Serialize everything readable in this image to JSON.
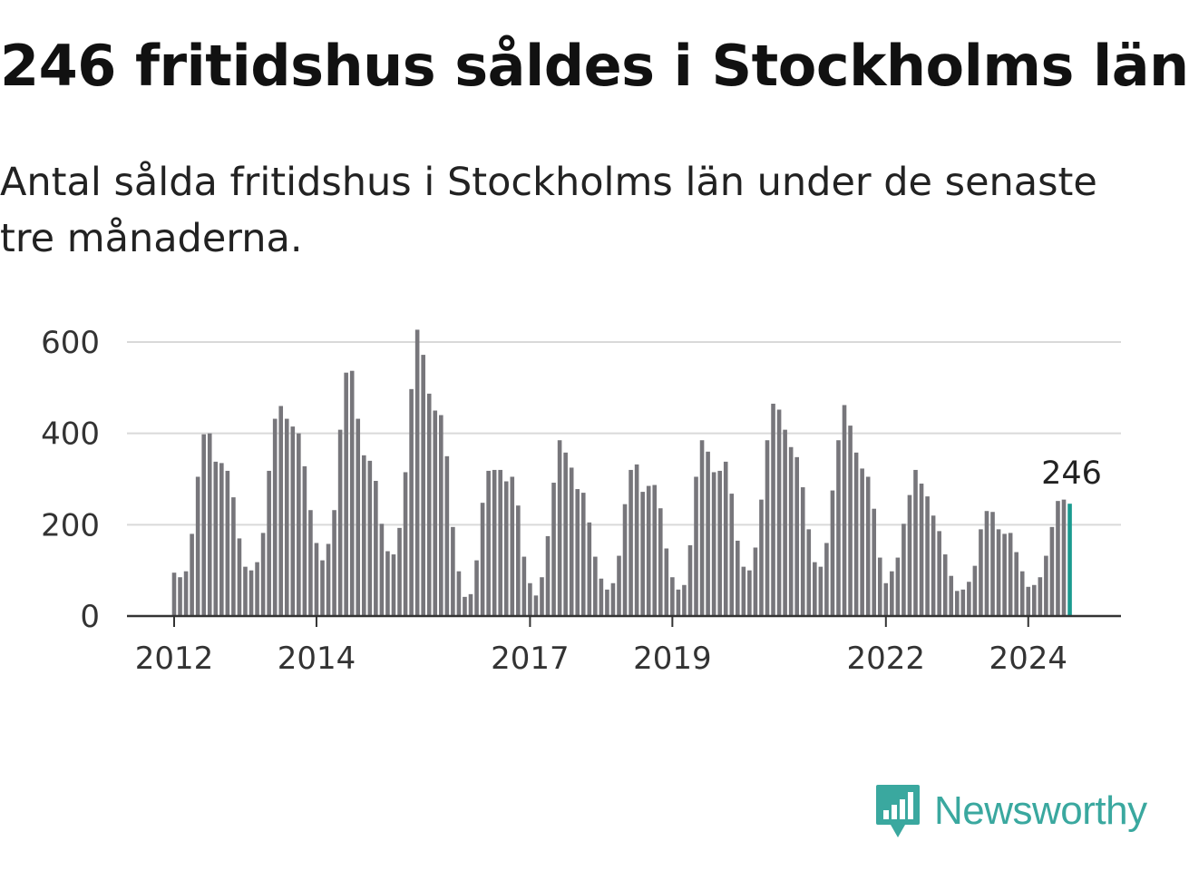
{
  "title": "246 fritidshus såldes i Stockholms län",
  "subtitle": "Antal sålda fritidshus i Stockholms län under de senaste tre månaderna.",
  "brand": {
    "name": "Newsworthy",
    "logo_icon": "newsworthy-bar-chart-icon",
    "color": "#3aa89f"
  },
  "colors": {
    "bar": "#77767b",
    "highlight": "#1a9a8f",
    "grid": "#d9d9d9",
    "axis": "#333333"
  },
  "chart_data": {
    "type": "bar",
    "title": "246 fritidshus såldes i Stockholms län",
    "xlabel": "",
    "ylabel": "",
    "ylim": [
      0,
      600
    ],
    "yticks": [
      0,
      200,
      400,
      600
    ],
    "grid": true,
    "x_start": "2012-01",
    "xticks": [
      {
        "label": "2012",
        "month_index": 0
      },
      {
        "label": "2014",
        "month_index": 24
      },
      {
        "label": "2017",
        "month_index": 60
      },
      {
        "label": "2019",
        "month_index": 84
      },
      {
        "label": "2022",
        "month_index": 120
      },
      {
        "label": "2024",
        "month_index": 144
      }
    ],
    "highlight": {
      "month_index": 151,
      "value": 246,
      "label": "246"
    },
    "values": [
      95,
      85,
      98,
      180,
      305,
      398,
      400,
      338,
      335,
      318,
      260,
      170,
      108,
      100,
      118,
      182,
      318,
      432,
      460,
      432,
      415,
      400,
      328,
      232,
      160,
      122,
      158,
      232,
      408,
      533,
      537,
      432,
      352,
      340,
      296,
      202,
      142,
      135,
      193,
      315,
      497,
      627,
      572,
      487,
      450,
      440,
      350,
      195,
      98,
      42,
      48,
      122,
      248,
      318,
      320,
      320,
      295,
      305,
      242,
      130,
      72,
      45,
      85,
      175,
      292,
      385,
      358,
      325,
      278,
      270,
      205,
      130,
      82,
      58,
      72,
      132,
      245,
      320,
      332,
      272,
      285,
      287,
      236,
      148,
      85,
      58,
      68,
      155,
      305,
      385,
      360,
      315,
      318,
      338,
      268,
      165,
      108,
      100,
      150,
      255,
      385,
      465,
      452,
      408,
      370,
      348,
      282,
      190,
      118,
      108,
      160,
      275,
      385,
      462,
      417,
      358,
      323,
      305,
      235,
      128,
      72,
      98,
      128,
      202,
      265,
      320,
      290,
      262,
      220,
      186,
      135,
      88,
      55,
      58,
      75,
      110,
      190,
      230,
      228,
      190,
      180,
      182,
      140,
      98,
      64,
      68,
      85,
      132,
      195,
      252,
      255,
      246
    ]
  }
}
